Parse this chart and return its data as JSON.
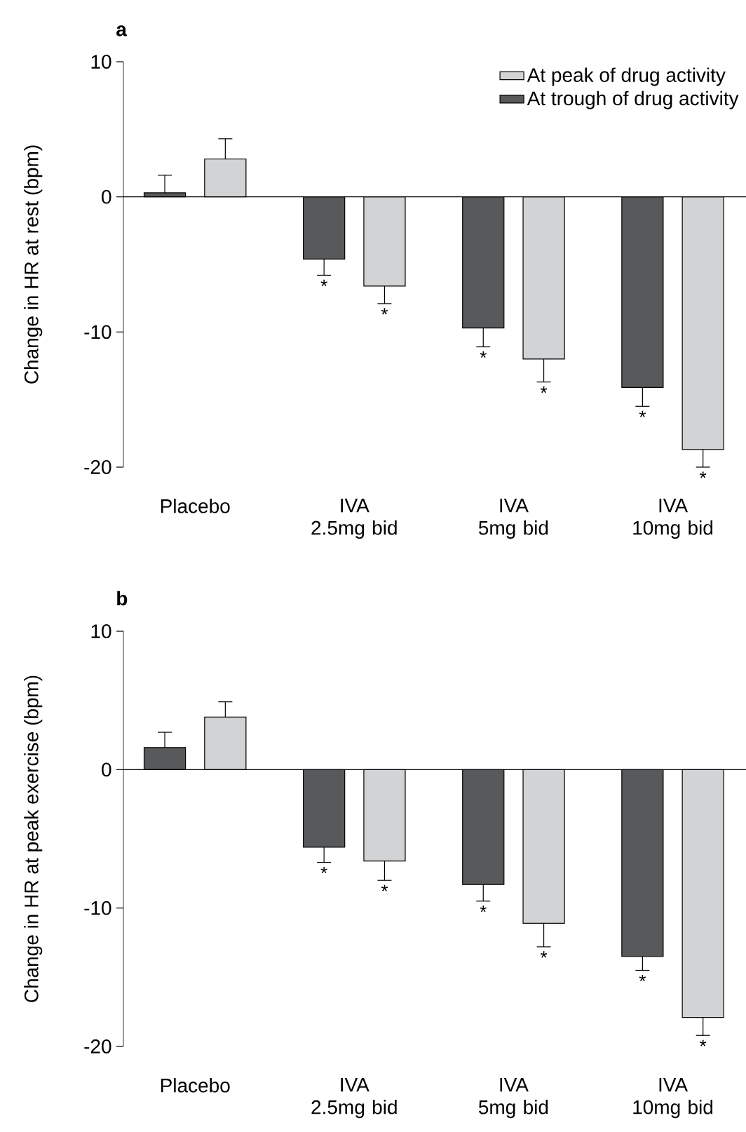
{
  "chart_data": [
    {
      "type": "bar",
      "title": "a",
      "ylabel": "Change in HR at rest (bpm)",
      "categories": [
        "Placebo",
        "IVA 2.5mg bid",
        "IVA 5mg bid",
        "IVA 10mg bid"
      ],
      "series": [
        {
          "name": "At trough of drug activity",
          "color": "#58595b",
          "values": [
            0.3,
            -4.6,
            -9.7,
            -14.1
          ],
          "errors": [
            [
              0.3,
              1.6
            ],
            [
              -5.8,
              -4.6
            ],
            [
              -11.1,
              -9.7
            ],
            [
              -15.5,
              -14.1
            ]
          ],
          "value_labels": [
            null,
            "*",
            "*",
            "*"
          ]
        },
        {
          "name": "At peak of drug activity",
          "color": "#d1d3d4",
          "values": [
            2.8,
            -6.6,
            -12.0,
            -18.7
          ],
          "errors": [
            [
              2.8,
              4.3
            ],
            [
              -7.9,
              -6.6
            ],
            [
              -13.7,
              -12.0
            ],
            [
              -20.0,
              -18.7
            ]
          ],
          "value_labels": [
            null,
            "*",
            "*",
            "*"
          ]
        }
      ],
      "ylim": [
        -20,
        10
      ],
      "yticks": [
        -20,
        -10,
        0,
        10
      ],
      "legend": "top right"
    },
    {
      "type": "bar",
      "title": "b",
      "ylabel": "Change in HR at peak exercise (bpm)",
      "categories": [
        "Placebo",
        "IVA 2.5mg bid",
        "IVA 5mg bid",
        "IVA 10mg bid"
      ],
      "series": [
        {
          "color": "#58595b",
          "values": [
            1.6,
            -5.6,
            -8.3,
            -13.5
          ],
          "errors": [
            [
              1.6,
              2.7
            ],
            [
              -6.7,
              -5.6
            ],
            [
              -9.5,
              -8.3
            ],
            [
              -14.5,
              -13.5
            ]
          ],
          "value_labels": [
            null,
            "*",
            "*",
            "*"
          ]
        },
        {
          "color": "#d1d3d4",
          "values": [
            3.8,
            -6.6,
            -11.1,
            -17.9
          ],
          "errors": [
            [
              3.8,
              4.9
            ],
            [
              -8.0,
              -6.6
            ],
            [
              -12.8,
              -11.1
            ],
            [
              -19.2,
              -17.9
            ]
          ],
          "value_labels": [
            null,
            "*",
            "*",
            "*"
          ]
        }
      ],
      "ylim": [
        -20,
        10
      ],
      "yticks": [
        -20,
        -10,
        0,
        10
      ],
      "legend": false
    }
  ]
}
